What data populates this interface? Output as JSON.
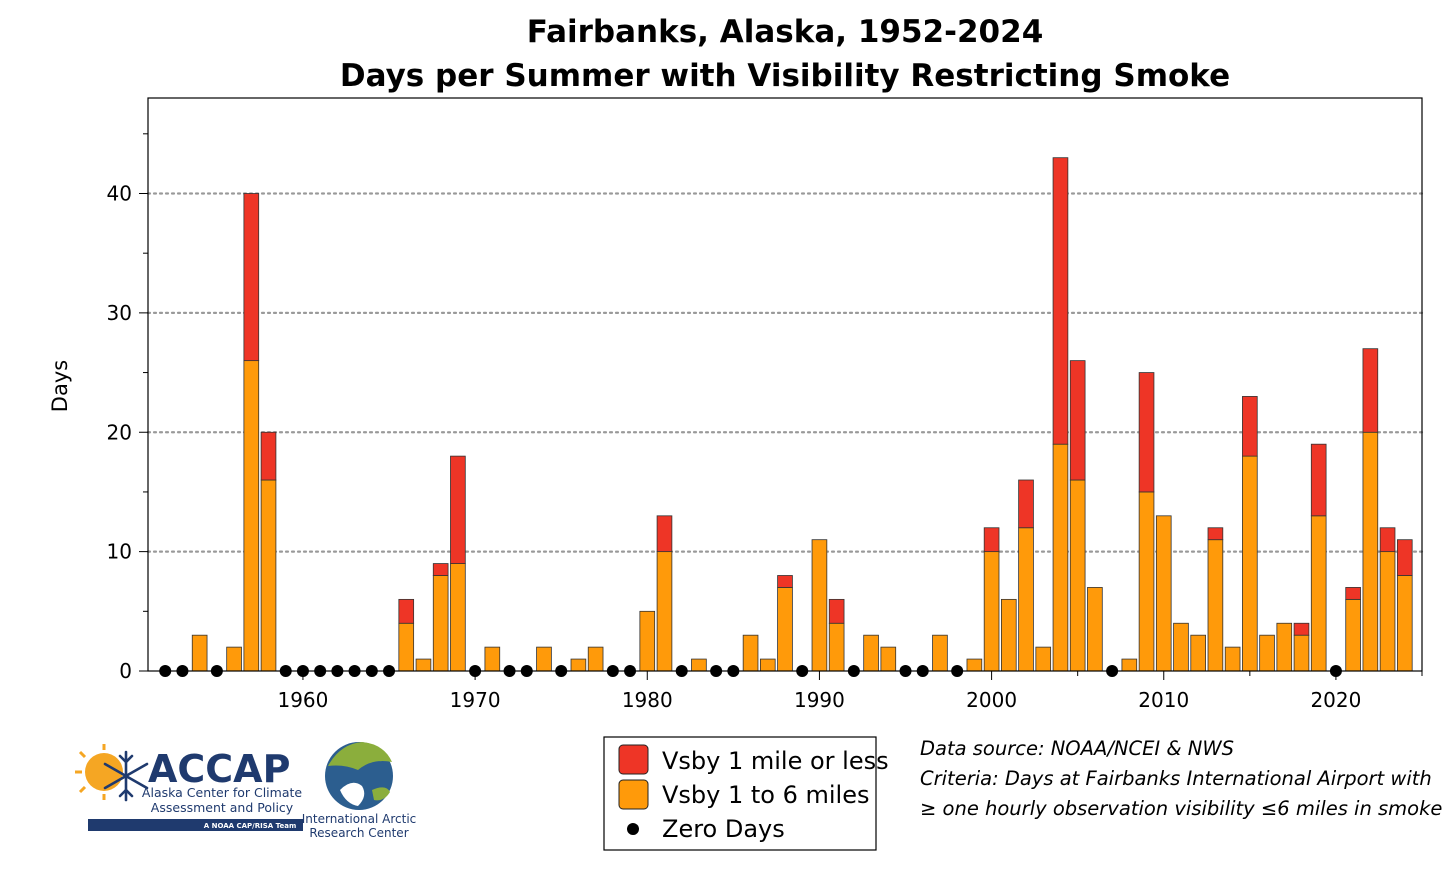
{
  "chart_data": {
    "type": "bar",
    "stacked": true,
    "title": "Fairbanks, Alaska, 1952-2024",
    "subtitle": "Days per Summer with Visibility Restricting Smoke",
    "xlabel": "",
    "ylabel": "Days",
    "xlim": [
      1951,
      2025
    ],
    "ylim": [
      0,
      48
    ],
    "x_ticks": [
      1960,
      1970,
      1980,
      1990,
      2000,
      2010,
      2020
    ],
    "y_ticks": [
      0,
      10,
      20,
      30,
      40
    ],
    "grid": "horizontal dotted at 10, 20, 30, 40",
    "years": [
      1952,
      1953,
      1954,
      1955,
      1956,
      1957,
      1958,
      1959,
      1960,
      1961,
      1962,
      1963,
      1964,
      1965,
      1966,
      1967,
      1968,
      1969,
      1970,
      1971,
      1972,
      1973,
      1974,
      1975,
      1976,
      1977,
      1978,
      1979,
      1980,
      1981,
      1982,
      1983,
      1984,
      1985,
      1986,
      1987,
      1988,
      1989,
      1990,
      1991,
      1992,
      1993,
      1994,
      1995,
      1996,
      1997,
      1998,
      1999,
      2000,
      2001,
      2002,
      2003,
      2004,
      2005,
      2006,
      2007,
      2008,
      2009,
      2010,
      2011,
      2012,
      2013,
      2014,
      2015,
      2016,
      2017,
      2018,
      2019,
      2020,
      2021,
      2022,
      2023,
      2024
    ],
    "series": [
      {
        "name": "Vsby 1 to 6 miles",
        "color": "#FF9A0A",
        "values": [
          0,
          0,
          3,
          0,
          2,
          26,
          16,
          0,
          0,
          0,
          0,
          0,
          0,
          0,
          4,
          1,
          8,
          9,
          0,
          2,
          0,
          0,
          2,
          0,
          1,
          2,
          0,
          0,
          5,
          10,
          0,
          1,
          0,
          0,
          3,
          1,
          7,
          0,
          11,
          4,
          0,
          3,
          2,
          0,
          0,
          3,
          0,
          1,
          10,
          6,
          12,
          2,
          19,
          16,
          7,
          0,
          1,
          15,
          13,
          4,
          3,
          11,
          2,
          18,
          3,
          4,
          3,
          13,
          0,
          6,
          20,
          10,
          8
        ]
      },
      {
        "name": "Vsby 1 mile or less",
        "color": "#EE3526",
        "values": [
          0,
          0,
          0,
          0,
          0,
          14,
          4,
          0,
          0,
          0,
          0,
          0,
          0,
          0,
          2,
          0,
          1,
          9,
          0,
          0,
          0,
          0,
          0,
          0,
          0,
          0,
          0,
          0,
          0,
          3,
          0,
          0,
          0,
          0,
          0,
          0,
          1,
          0,
          0,
          2,
          0,
          0,
          0,
          0,
          0,
          0,
          0,
          0,
          2,
          0,
          4,
          0,
          24,
          10,
          0,
          0,
          0,
          10,
          0,
          0,
          0,
          1,
          0,
          5,
          0,
          0,
          1,
          6,
          0,
          1,
          7,
          2,
          3
        ]
      }
    ],
    "zero_days_label": "Zero Days",
    "legend": [
      "Vsby 1 mile or less",
      "Vsby 1 to 6 miles",
      "Zero Days"
    ],
    "legend_position": "bottom-center"
  },
  "notes": {
    "line1": "Data source: NOAA/NCEI & NWS",
    "line2": "Criteria: Days at Fairbanks International Airport with",
    "line3": "≥ one hourly observation visibility ≤6 miles in smoke"
  },
  "logos": {
    "accap_name": "ACCAP",
    "accap_line1": "Alaska Center for Climate",
    "accap_line2": "Assessment and Policy",
    "accap_tag": "A NOAA CAP/RISA Team",
    "iarc_line1": "International Arctic",
    "iarc_line2": "Research Center"
  },
  "colors": {
    "orange": "#FF9A0A",
    "red": "#EE3526",
    "accap_blue": "#1F3A6E",
    "accap_gold": "#F5A623",
    "globe_green": "#8BAE3C",
    "globe_blue": "#2C5E8F"
  }
}
